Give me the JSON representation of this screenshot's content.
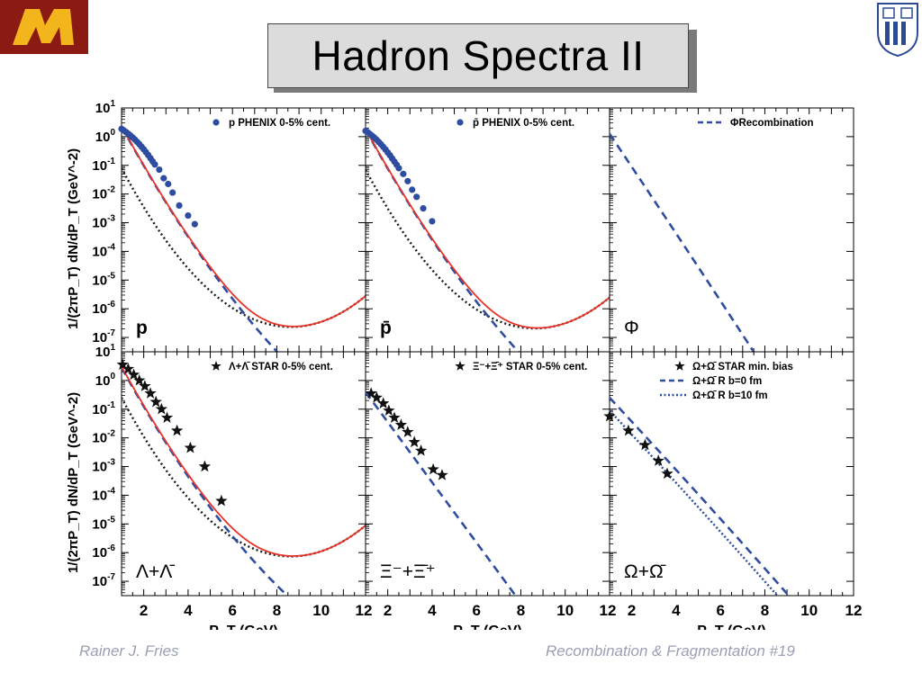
{
  "slide": {
    "title": "Hadron Spectra II",
    "footer_left": "Rainer J. Fries",
    "footer_right": "Recombination & Fragmentation  #19"
  },
  "colors": {
    "logo_left_bg": "#8b1a12",
    "logo_left_fg": "#f2b51c",
    "logo_right": "#2d4a94",
    "data_points": "#2f4da0",
    "theory_total": "#e8332a",
    "recombination": "#2f4da0",
    "fragmentation": "#1a1a1a"
  },
  "icons": {
    "logo_left": "minnesota-m-logo",
    "logo_right": "duke-university-shield-logo"
  },
  "chart_data": {
    "type": "scatter",
    "x_label": "P_T (GeV)",
    "y_label": "1/(2πP_T) dN/dP_T (GeV^-2)",
    "x_ticks": [
      2,
      4,
      6,
      8,
      10,
      12
    ],
    "y_ticks": [
      "10^1",
      "10^0",
      "10^-1",
      "10^-2",
      "10^-3",
      "10^-4",
      "10^-5",
      "10^-6",
      "10^-7"
    ],
    "xlim": [
      1,
      12
    ],
    "ylog10_lim": [
      -7.5,
      1
    ],
    "y_scale": "log",
    "panels": [
      {
        "label": "p",
        "legend": [
          {
            "marker": "circle",
            "text": "p PHENIX 0-5% cent."
          }
        ],
        "data": {
          "x": [
            1.0,
            1.1,
            1.2,
            1.3,
            1.4,
            1.5,
            1.6,
            1.7,
            1.8,
            1.9,
            2.0,
            2.1,
            2.2,
            2.3,
            2.4,
            2.5,
            2.7,
            2.9,
            3.1,
            3.3,
            3.6,
            4.0,
            4.3
          ],
          "log10_y": [
            0.27,
            0.22,
            0.16,
            0.1,
            0.04,
            -0.03,
            -0.1,
            -0.18,
            -0.26,
            -0.35,
            -0.44,
            -0.54,
            -0.64,
            -0.75,
            -0.86,
            -0.97,
            -1.15,
            -1.45,
            -1.65,
            -1.95,
            -2.4,
            -2.75,
            -3.05
          ]
        },
        "curves": {
          "total": true,
          "recombination": true,
          "fragmentation": true
        }
      },
      {
        "label": "p̄",
        "legend": [
          {
            "marker": "circle",
            "text": "p̄ PHENIX 0-5% cent."
          }
        ],
        "data": {
          "x": [
            1.0,
            1.1,
            1.2,
            1.3,
            1.4,
            1.5,
            1.6,
            1.7,
            1.8,
            1.9,
            2.0,
            2.1,
            2.2,
            2.3,
            2.4,
            2.5,
            2.7,
            2.9,
            3.1,
            3.3,
            3.6,
            4.0
          ],
          "log10_y": [
            0.2,
            0.15,
            0.09,
            0.03,
            -0.04,
            -0.11,
            -0.19,
            -0.27,
            -0.36,
            -0.45,
            -0.55,
            -0.65,
            -0.76,
            -0.87,
            -0.98,
            -1.1,
            -1.3,
            -1.55,
            -1.85,
            -2.1,
            -2.5,
            -2.95
          ]
        },
        "curves": {
          "total": true,
          "recombination": true,
          "fragmentation": true
        }
      },
      {
        "label": "Φ",
        "legend": [
          {
            "marker": "dash",
            "text": "ΦRecombination"
          }
        ],
        "data": null,
        "curves": {
          "total": false,
          "recombination": true,
          "fragmentation": false
        }
      },
      {
        "label": "Λ+Λ̄",
        "legend": [
          {
            "marker": "star",
            "text": "Λ+Λ̄ STAR 0-5% cent."
          }
        ],
        "data": {
          "x": [
            1.05,
            1.3,
            1.55,
            1.8,
            2.05,
            2.3,
            2.55,
            2.8,
            3.05,
            3.5,
            4.1,
            4.75,
            5.5
          ],
          "log10_y": [
            0.55,
            0.4,
            0.2,
            0.0,
            -0.2,
            -0.45,
            -0.75,
            -1.0,
            -1.3,
            -1.75,
            -2.35,
            -3.0,
            -4.2
          ]
        },
        "curves": {
          "total": true,
          "recombination": true,
          "fragmentation": true
        }
      },
      {
        "label": "Ξ⁻+Ξ̄⁺",
        "legend": [
          {
            "marker": "star",
            "text": "Ξ⁻+Ξ̄⁺ STAR 0-5% cent."
          }
        ],
        "data": {
          "x": [
            1.25,
            1.5,
            1.8,
            2.05,
            2.3,
            2.6,
            2.9,
            3.2,
            3.5,
            4.05,
            4.45
          ],
          "log10_y": [
            -0.45,
            -0.6,
            -0.8,
            -1.05,
            -1.3,
            -1.55,
            -1.8,
            -2.15,
            -2.45,
            -3.1,
            -3.3
          ]
        },
        "curves": {
          "total": false,
          "recombination": true,
          "fragmentation": false
        }
      },
      {
        "label": "Ω+Ω̄",
        "legend": [
          {
            "marker": "star",
            "text": "Ω+Ω̄ STAR min. bias"
          },
          {
            "marker": "dash",
            "text": "Ω+Ω̄ R b=0 fm"
          },
          {
            "marker": "dot",
            "text": "Ω+Ω̄ R b=10 fm"
          }
        ],
        "data": {
          "x": [
            1.0,
            1.85,
            2.6,
            3.2,
            3.6
          ],
          "log10_y": [
            -1.25,
            -1.75,
            -2.25,
            -2.8,
            -3.25
          ]
        },
        "curves": {
          "total": false,
          "recombination": true,
          "fragmentation": false,
          "recombination_b10": true
        }
      }
    ]
  }
}
